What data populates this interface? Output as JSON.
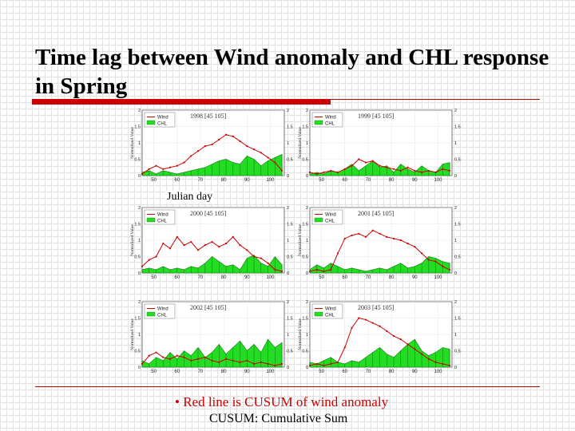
{
  "slide": {
    "title_line1": "Time lag between Wind anomaly and CHL response",
    "title_line2": "in Spring",
    "xlabel": "Julian day",
    "note_line1": "• Red line is CUSUM of wind anomaly",
    "note_line2": "CUSUM: Cumulative Sum"
  },
  "colors": {
    "wind": "#cc0000",
    "chl_fill": "#22dd22",
    "chl_stroke": "#117711",
    "rule": "#cc0000"
  },
  "chart_data": [
    {
      "type": "area",
      "title": "1998  [45 105]",
      "ylabel": "Normalized Value",
      "xlim": [
        45,
        106
      ],
      "ylim": [
        0,
        2
      ],
      "x_ticks": [
        50,
        60,
        70,
        80,
        90,
        100
      ],
      "y_ticks": [
        0,
        0.5,
        1,
        1.5,
        2
      ],
      "legend": [
        "Wind",
        "CHL"
      ],
      "series": [
        {
          "name": "Wind",
          "kind": "line",
          "x": [
            45,
            48,
            51,
            54,
            57,
            60,
            63,
            66,
            69,
            72,
            75,
            78,
            81,
            84,
            87,
            90,
            93,
            96,
            99,
            102,
            105
          ],
          "values": [
            0.05,
            0.2,
            0.3,
            0.2,
            0.25,
            0.3,
            0.4,
            0.6,
            0.75,
            0.9,
            0.95,
            1.1,
            1.25,
            1.2,
            1.05,
            0.9,
            0.8,
            0.7,
            0.55,
            0.4,
            0.15
          ]
        },
        {
          "name": "CHL",
          "kind": "area",
          "x": [
            45,
            48,
            51,
            54,
            57,
            60,
            63,
            66,
            69,
            72,
            75,
            78,
            81,
            84,
            87,
            90,
            93,
            96,
            99,
            102,
            105
          ],
          "values": [
            0.1,
            0.15,
            0.05,
            0.15,
            0.1,
            0.05,
            0.1,
            0.15,
            0.2,
            0.25,
            0.35,
            0.45,
            0.5,
            0.4,
            0.35,
            0.6,
            0.5,
            0.3,
            0.45,
            0.55,
            0.65
          ]
        }
      ]
    },
    {
      "type": "area",
      "title": "1999  [45 105]",
      "ylabel": "Normalized Value",
      "xlim": [
        45,
        106
      ],
      "ylim": [
        0,
        2
      ],
      "x_ticks": [
        50,
        60,
        70,
        80,
        90,
        100
      ],
      "y_ticks": [
        0,
        0.5,
        1,
        1.5,
        2
      ],
      "legend": [
        "Wind",
        "CHL"
      ],
      "series": [
        {
          "name": "Wind",
          "kind": "line",
          "x": [
            45,
            48,
            51,
            54,
            57,
            60,
            63,
            66,
            69,
            72,
            75,
            78,
            81,
            84,
            87,
            90,
            93,
            96,
            99,
            102,
            105
          ],
          "values": [
            0.1,
            0.05,
            0.1,
            0.15,
            0.1,
            0.2,
            0.3,
            0.5,
            0.4,
            0.45,
            0.3,
            0.25,
            0.2,
            0.15,
            0.25,
            0.15,
            0.1,
            0.15,
            0.1,
            0.2,
            0.15
          ]
        },
        {
          "name": "CHL",
          "kind": "area",
          "x": [
            45,
            48,
            51,
            54,
            57,
            60,
            63,
            66,
            69,
            72,
            75,
            78,
            81,
            84,
            87,
            90,
            93,
            96,
            99,
            102,
            105
          ],
          "values": [
            0.05,
            0.1,
            0.05,
            0.15,
            0.1,
            0.2,
            0.35,
            0.15,
            0.3,
            0.45,
            0.25,
            0.3,
            0.1,
            0.35,
            0.2,
            0.1,
            0.3,
            0.15,
            0.1,
            0.35,
            0.4
          ]
        }
      ]
    },
    {
      "type": "area",
      "title": "2000  [45 105]",
      "ylabel": "Normalized Value",
      "xlim": [
        45,
        106
      ],
      "ylim": [
        0,
        2
      ],
      "x_ticks": [
        50,
        60,
        70,
        80,
        90,
        100
      ],
      "y_ticks": [
        0,
        0.5,
        1,
        1.5,
        2
      ],
      "legend": [
        "Wind",
        "CHL"
      ],
      "series": [
        {
          "name": "Wind",
          "kind": "line",
          "x": [
            45,
            48,
            51,
            54,
            57,
            60,
            63,
            66,
            69,
            72,
            75,
            78,
            81,
            84,
            87,
            90,
            93,
            96,
            99,
            102,
            105
          ],
          "values": [
            0.2,
            0.4,
            0.5,
            0.9,
            0.75,
            1.1,
            0.85,
            0.95,
            0.7,
            0.85,
            0.95,
            0.8,
            0.9,
            1.1,
            0.85,
            0.7,
            0.5,
            0.45,
            0.3,
            0.1,
            0.05
          ]
        },
        {
          "name": "CHL",
          "kind": "area",
          "x": [
            45,
            48,
            51,
            54,
            57,
            60,
            63,
            66,
            69,
            72,
            75,
            78,
            81,
            84,
            87,
            90,
            93,
            96,
            99,
            102,
            105
          ],
          "values": [
            0.1,
            0.15,
            0.1,
            0.2,
            0.1,
            0.15,
            0.1,
            0.2,
            0.15,
            0.3,
            0.5,
            0.35,
            0.2,
            0.25,
            0.1,
            0.45,
            0.55,
            0.3,
            0.2,
            0.5,
            0.25
          ]
        }
      ]
    },
    {
      "type": "area",
      "title": "2001  [45 105]",
      "ylabel": "Normalized Value",
      "xlim": [
        45,
        106
      ],
      "ylim": [
        0,
        2
      ],
      "x_ticks": [
        50,
        60,
        70,
        80,
        90,
        100
      ],
      "y_ticks": [
        0,
        0.5,
        1,
        1.5,
        2
      ],
      "legend": [
        "Wind",
        "CHL"
      ],
      "series": [
        {
          "name": "Wind",
          "kind": "line",
          "x": [
            45,
            48,
            51,
            54,
            57,
            60,
            63,
            66,
            69,
            72,
            75,
            78,
            81,
            84,
            87,
            90,
            93,
            96,
            99,
            102,
            105
          ],
          "values": [
            0.05,
            0.1,
            0.05,
            0.1,
            0.6,
            1.05,
            1.15,
            1.2,
            1.1,
            1.3,
            1.2,
            1.1,
            1.05,
            1.0,
            0.9,
            0.8,
            0.6,
            0.4,
            0.35,
            0.2,
            0.1
          ]
        },
        {
          "name": "CHL",
          "kind": "area",
          "x": [
            45,
            48,
            51,
            54,
            57,
            60,
            63,
            66,
            69,
            72,
            75,
            78,
            81,
            84,
            87,
            90,
            93,
            96,
            99,
            102,
            105
          ],
          "values": [
            0.1,
            0.25,
            0.15,
            0.3,
            0.2,
            0.1,
            0.15,
            0.1,
            0.05,
            0.1,
            0.15,
            0.1,
            0.2,
            0.3,
            0.15,
            0.2,
            0.3,
            0.5,
            0.45,
            0.35,
            0.3
          ]
        }
      ]
    },
    {
      "type": "area",
      "title": "2002  [45 105]",
      "ylabel": "Normalized Value",
      "xlim": [
        45,
        106
      ],
      "ylim": [
        0,
        2
      ],
      "x_ticks": [
        50,
        60,
        70,
        80,
        90,
        100
      ],
      "y_ticks": [
        0,
        0.5,
        1,
        1.5,
        2
      ],
      "legend": [
        "Wind",
        "CHL"
      ],
      "series": [
        {
          "name": "Wind",
          "kind": "line",
          "x": [
            45,
            48,
            51,
            54,
            57,
            60,
            63,
            66,
            69,
            72,
            75,
            78,
            81,
            84,
            87,
            90,
            93,
            96,
            99,
            102,
            105
          ],
          "values": [
            0.1,
            0.35,
            0.45,
            0.3,
            0.25,
            0.35,
            0.3,
            0.2,
            0.25,
            0.3,
            0.2,
            0.15,
            0.25,
            0.2,
            0.15,
            0.2,
            0.1,
            0.15,
            0.1,
            0.05,
            0.1
          ]
        },
        {
          "name": "CHL",
          "kind": "area",
          "x": [
            45,
            48,
            51,
            54,
            57,
            60,
            63,
            66,
            69,
            72,
            75,
            78,
            81,
            84,
            87,
            90,
            93,
            96,
            99,
            102,
            105
          ],
          "values": [
            0.2,
            0.1,
            0.3,
            0.2,
            0.45,
            0.25,
            0.5,
            0.35,
            0.6,
            0.3,
            0.45,
            0.7,
            0.4,
            0.6,
            0.8,
            0.5,
            0.7,
            0.45,
            0.85,
            0.6,
            0.75
          ]
        }
      ]
    },
    {
      "type": "area",
      "title": "2003  [45 105]",
      "ylabel": "Normalized Value",
      "xlim": [
        45,
        106
      ],
      "ylim": [
        0,
        2
      ],
      "x_ticks": [
        50,
        60,
        70,
        80,
        90,
        100
      ],
      "y_ticks": [
        0,
        0.5,
        1,
        1.5,
        2
      ],
      "legend": [
        "Wind",
        "CHL"
      ],
      "series": [
        {
          "name": "Wind",
          "kind": "line",
          "x": [
            45,
            48,
            51,
            54,
            57,
            60,
            63,
            66,
            69,
            72,
            75,
            78,
            81,
            84,
            87,
            90,
            93,
            96,
            99,
            102,
            105
          ],
          "values": [
            0.05,
            0.1,
            0.05,
            0.1,
            0.15,
            0.6,
            1.2,
            1.5,
            1.45,
            1.35,
            1.25,
            1.1,
            0.95,
            0.85,
            0.7,
            0.55,
            0.4,
            0.25,
            0.15,
            0.1,
            0.05
          ]
        },
        {
          "name": "CHL",
          "kind": "area",
          "x": [
            45,
            48,
            51,
            54,
            57,
            60,
            63,
            66,
            69,
            72,
            75,
            78,
            81,
            84,
            87,
            90,
            93,
            96,
            99,
            102,
            105
          ],
          "values": [
            0.15,
            0.1,
            0.2,
            0.3,
            0.15,
            0.1,
            0.2,
            0.15,
            0.3,
            0.45,
            0.6,
            0.4,
            0.3,
            0.5,
            0.7,
            0.85,
            0.5,
            0.35,
            0.45,
            0.6,
            0.55
          ]
        }
      ]
    }
  ]
}
